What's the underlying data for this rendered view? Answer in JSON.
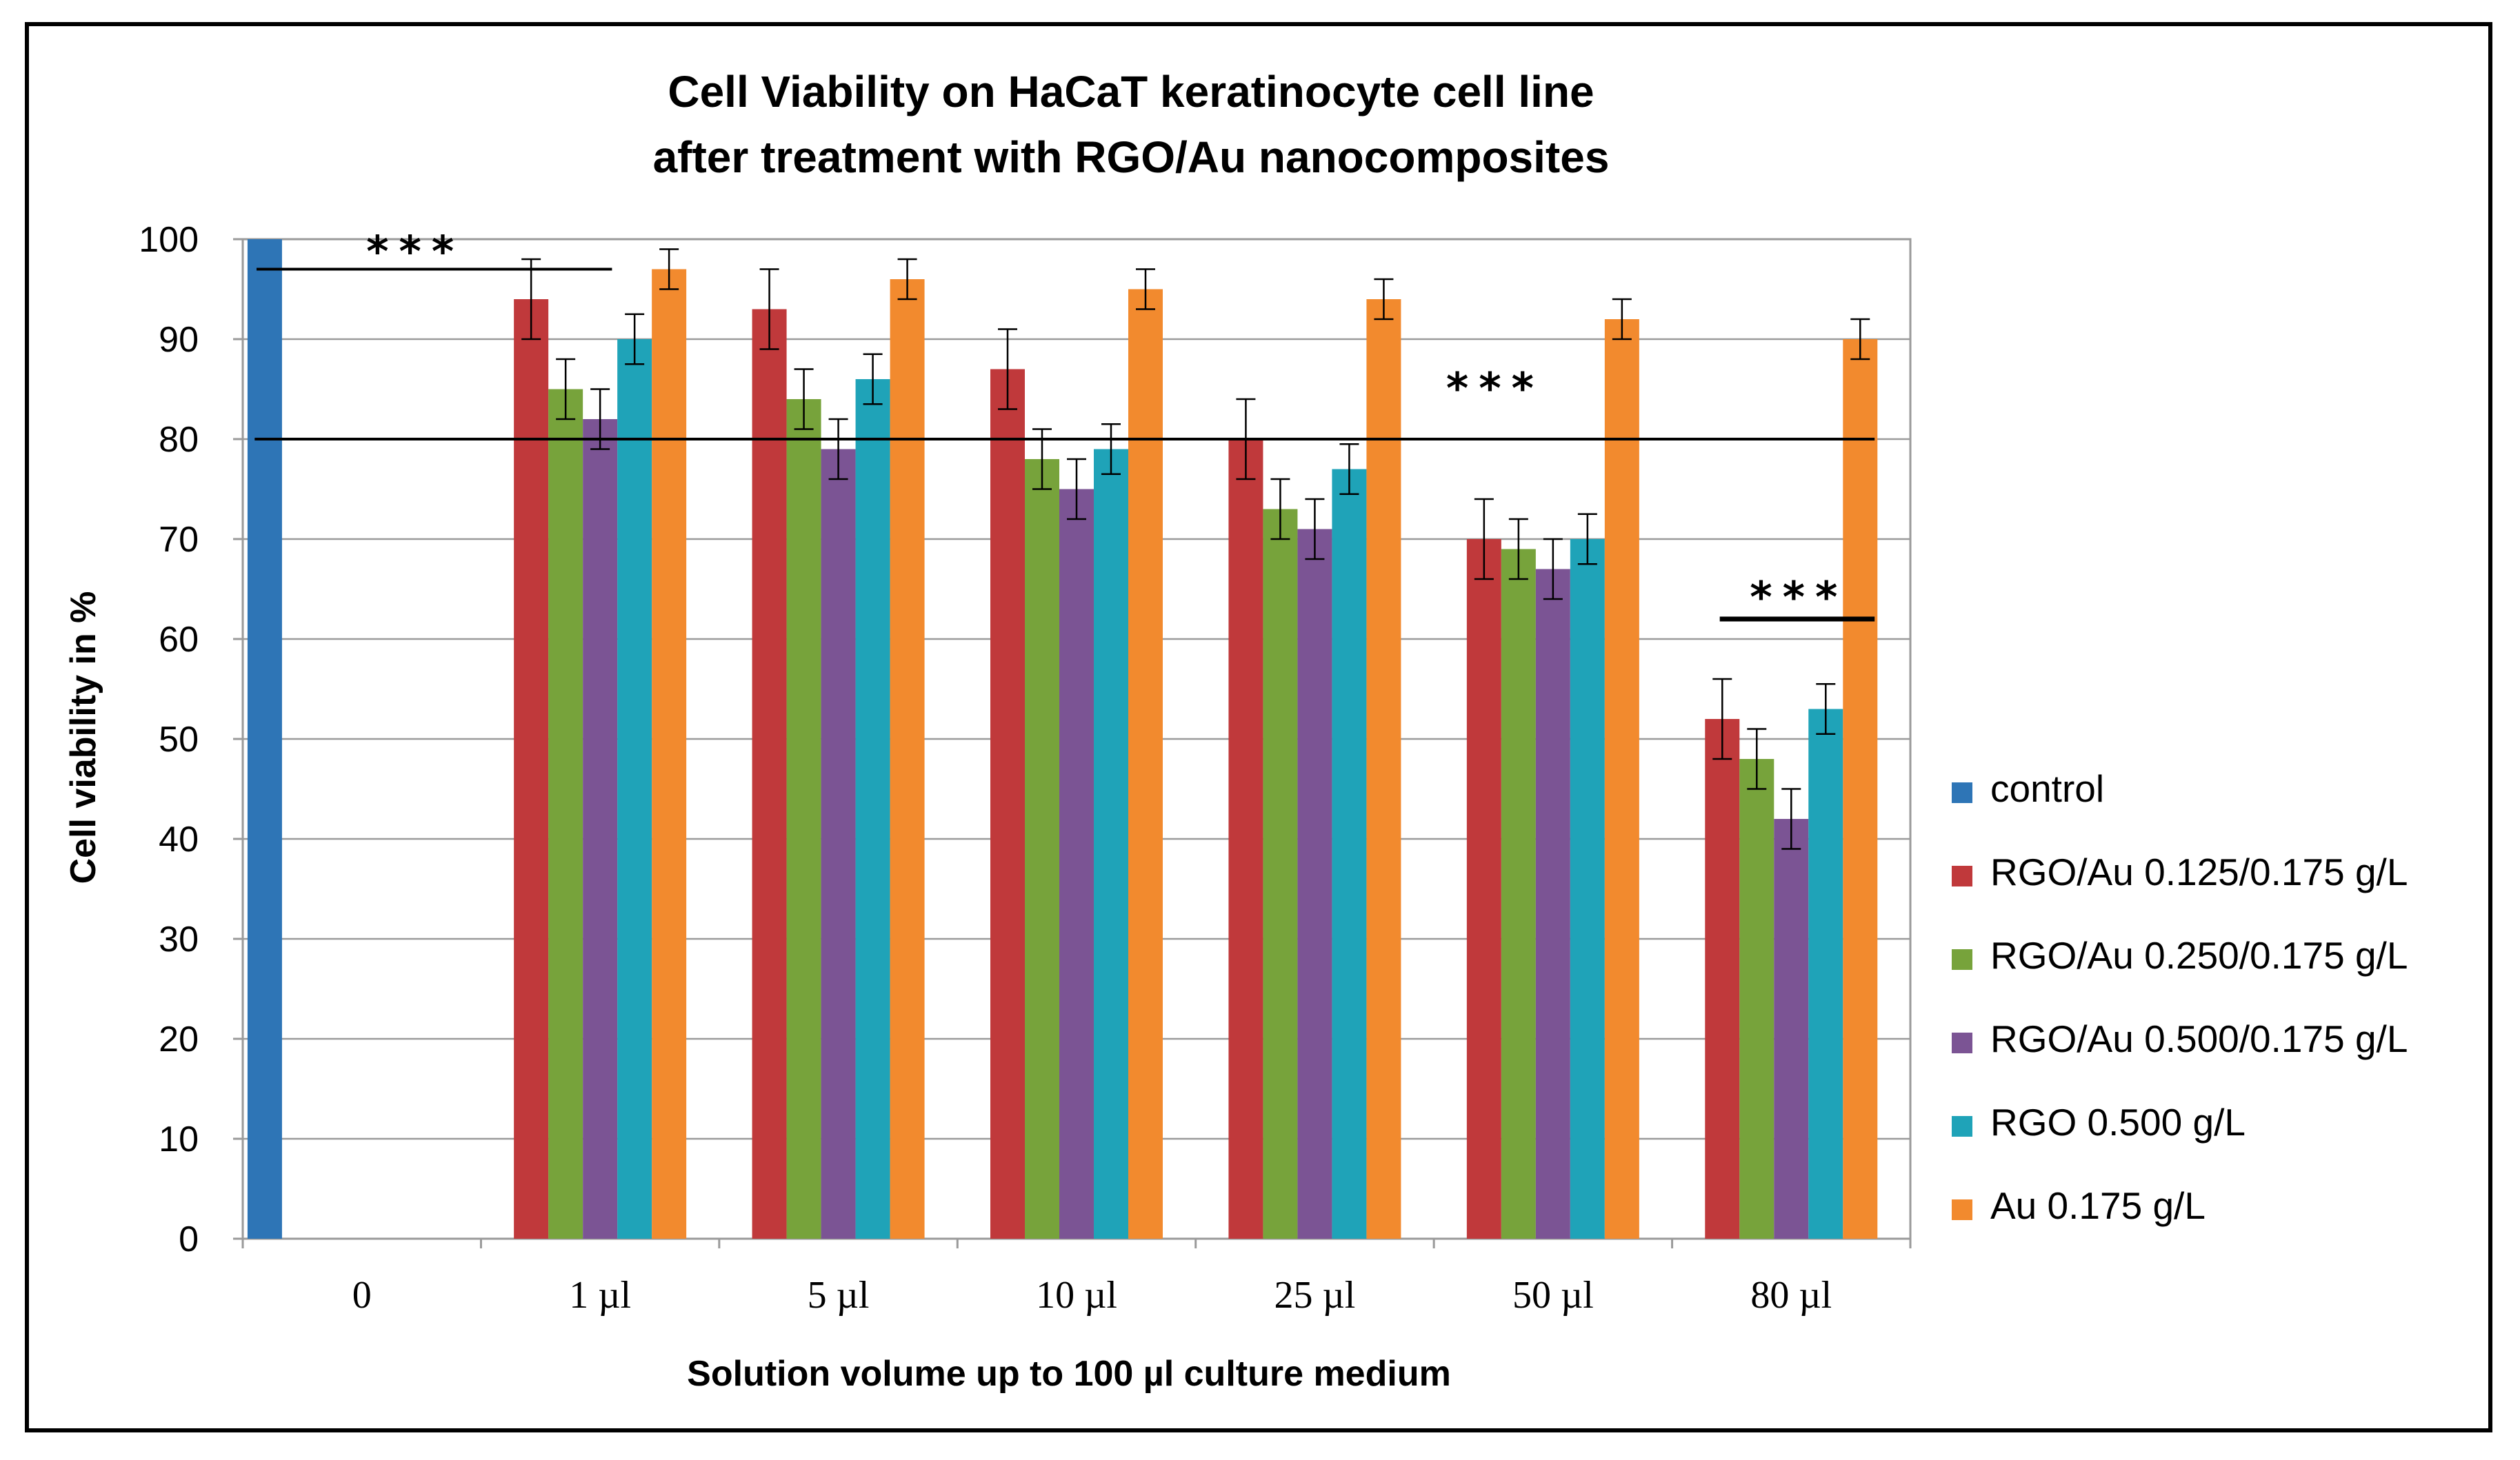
{
  "chart_data": {
    "type": "bar",
    "title_lines": [
      "Cell Viability on HaCaT keratinocyte cell line",
      "after treatment with RGO/Au nanocomposites"
    ],
    "xlabel": "Solution volume up to 100 µl  culture medium",
    "ylabel": "Cell  viability in %",
    "ylim": [
      0,
      100
    ],
    "yticks": [
      "0",
      "10",
      "20",
      "30",
      "40",
      "50",
      "60",
      "70",
      "80",
      "90",
      "100"
    ],
    "grid": true,
    "legend_position": "right",
    "categories": [
      "0",
      "1 µl",
      "5 µl",
      "10 µl",
      "25 µl",
      "50 µl",
      "80 µl"
    ],
    "series": [
      {
        "name": "control",
        "color": "#2E75B6",
        "values": [
          100,
          null,
          null,
          null,
          null,
          null,
          null
        ],
        "errors": [
          null,
          null,
          null,
          null,
          null,
          null,
          null
        ]
      },
      {
        "name": "RGO/Au 0.125/0.175 g/L",
        "color": "#C0393B",
        "values": [
          null,
          94,
          93,
          87,
          80,
          70,
          52
        ],
        "errors": [
          null,
          4,
          4,
          4,
          4,
          4,
          4
        ]
      },
      {
        "name": "RGO/Au 0.250/0.175 g/L",
        "color": "#77A33B",
        "values": [
          null,
          85,
          84,
          78,
          73,
          69,
          48
        ],
        "errors": [
          null,
          3,
          3,
          3,
          3,
          3,
          3
        ]
      },
      {
        "name": "RGO/Au 0.500/0.175 g/L",
        "color": "#7B5494",
        "values": [
          null,
          82,
          79,
          75,
          71,
          67,
          42
        ],
        "errors": [
          null,
          3,
          3,
          3,
          3,
          3,
          3
        ]
      },
      {
        "name": "RGO 0.500 g/L",
        "color": "#1FA3B8",
        "values": [
          null,
          90,
          86,
          79,
          77,
          70,
          53
        ],
        "errors": [
          null,
          2.5,
          2.5,
          2.5,
          2.5,
          2.5,
          2.5
        ]
      },
      {
        "name": "Au 0.175 g/L",
        "color": "#F28A2E",
        "values": [
          null,
          97,
          96,
          95,
          94,
          92,
          90
        ],
        "errors": [
          null,
          2,
          2,
          2,
          2,
          2,
          2
        ]
      }
    ],
    "annotations": [
      {
        "text": "***",
        "label": "significance-top-left",
        "line_value": 97,
        "from_category": 0,
        "to_category": 1
      },
      {
        "text": "***",
        "label": "significance-middle",
        "line_value": 80,
        "from_category": 0,
        "to_category": 6
      },
      {
        "text": "***",
        "label": "significance-80ul",
        "line_value": 62,
        "from_category": 6,
        "to_category": 6
      }
    ]
  }
}
